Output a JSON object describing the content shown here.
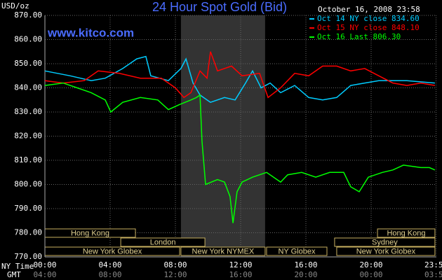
{
  "chart_data": {
    "type": "line",
    "title": "24 Hour Spot Gold (Bid)",
    "y_unit_label": "USD/oz",
    "timestamp": "October 16, 2008 23:58",
    "watermark": "www.kitco.com",
    "x_row_labels": [
      "NY Time",
      "GMT"
    ],
    "xlim": [
      0,
      24
    ],
    "ylim": [
      770,
      870
    ],
    "yticks": [
      {
        "value": 770,
        "label": "770.00"
      },
      {
        "value": 780,
        "label": "780.00"
      },
      {
        "value": 790,
        "label": "790.00"
      },
      {
        "value": 800,
        "label": "800.00"
      },
      {
        "value": 810,
        "label": "810.00"
      },
      {
        "value": 820,
        "label": "820.00"
      },
      {
        "value": 830,
        "label": "830.00"
      },
      {
        "value": 840,
        "label": "840.00"
      },
      {
        "value": 850,
        "label": "850.00"
      },
      {
        "value": 860,
        "label": "860.00"
      },
      {
        "value": 870,
        "label": "870.00"
      }
    ],
    "xticks": [
      {
        "value": 0,
        "label": "00:00"
      },
      {
        "value": 4,
        "label": "04:00"
      },
      {
        "value": 8,
        "label": "08:00"
      },
      {
        "value": 12,
        "label": "12:00"
      },
      {
        "value": 16,
        "label": "16:00"
      },
      {
        "value": 20,
        "label": "20:00"
      },
      {
        "value": 23.98,
        "label": "23:59"
      }
    ],
    "xtick_labels_gmt": [
      "04:00",
      "08:00",
      "12:00",
      "16:00",
      "20:00",
      "00:00",
      "03:59"
    ],
    "grid": true,
    "session_rows": [
      [
        {
          "label": "Hong Kong",
          "start": 0,
          "end": 5.55
        },
        {
          "label": "Hong Kong",
          "start": 20.39,
          "end": 23.91
        }
      ],
      [
        {
          "label": "London",
          "start": 4.65,
          "end": 9.81
        },
        {
          "label": "Sydney",
          "start": 17.76,
          "end": 23.91
        }
      ],
      [
        {
          "label": "New York Globex",
          "start": 0,
          "end": 8.26
        },
        {
          "label": "New York NYMEX",
          "start": 8.34,
          "end": 13.5,
          "shaded": true
        },
        {
          "label": "NY Globex",
          "start": 13.59,
          "end": 17.29
        },
        {
          "label": "New York Globex",
          "start": 17.89,
          "end": 23.91
        }
      ]
    ],
    "series": [
      {
        "name": "Oct 14 NY close 834.60",
        "color": "#00ccff",
        "x": [
          0,
          1.55,
          2.84,
          3.7,
          4.77,
          5.63,
          6.19,
          6.49,
          7.57,
          8.34,
          8.65,
          9.08,
          9.51,
          10.15,
          11.01,
          11.66,
          12.3,
          12.73,
          13.25,
          13.81,
          14.45,
          15.31,
          16.17,
          17.03,
          17.89,
          18.75,
          19.61,
          20.47,
          22.19,
          23.91
        ],
        "values": [
          847,
          845,
          843,
          844,
          848,
          852,
          853,
          845,
          843,
          848,
          852,
          842,
          837,
          834,
          836,
          835,
          842,
          847,
          840,
          842,
          838,
          841,
          836,
          835,
          836,
          841,
          842,
          843,
          843,
          842
        ]
      },
      {
        "name": "Oct 15 NY close 848.10",
        "color": "#ff0000",
        "x": [
          0,
          1.12,
          2.41,
          3.27,
          4.56,
          5.85,
          7.14,
          8.0,
          8.52,
          8.95,
          9.51,
          9.94,
          10.15,
          10.58,
          11.44,
          12.09,
          13.16,
          13.68,
          14.45,
          15.31,
          16.17,
          17.03,
          17.89,
          18.75,
          19.61,
          20.47,
          21.33,
          22.19,
          23.05,
          23.91
        ],
        "values": [
          843,
          842,
          843,
          847,
          846,
          844,
          844,
          840,
          836,
          838,
          847,
          844,
          855,
          847,
          849,
          845,
          846,
          836,
          840,
          846,
          845,
          849,
          849,
          847,
          848,
          845,
          842,
          841,
          842,
          841
        ]
      },
      {
        "name": "Oct 16 Last 806.30",
        "color": "#00ff00",
        "x": [
          0,
          1.12,
          1.98,
          2.84,
          3.7,
          4.04,
          4.77,
          5.85,
          6.92,
          7.57,
          8.22,
          8.95,
          9.29,
          9.51,
          9.63,
          9.85,
          10.58,
          11.01,
          11.35,
          11.53,
          11.78,
          12.09,
          12.73,
          13.59,
          14.45,
          14.88,
          15.74,
          16.6,
          17.46,
          18.32,
          18.75,
          19.27,
          19.83,
          20.69,
          21.33,
          21.98,
          23.05,
          23.57,
          23.91
        ],
        "values": [
          841,
          842,
          840,
          838,
          835,
          830,
          834,
          836,
          835,
          831,
          833,
          835,
          836,
          837,
          818,
          800,
          802,
          801,
          795,
          784,
          797,
          801,
          803,
          805,
          801,
          804,
          805,
          803,
          805,
          805,
          799,
          797,
          803,
          805,
          806,
          808,
          807,
          807,
          806
        ]
      }
    ]
  }
}
